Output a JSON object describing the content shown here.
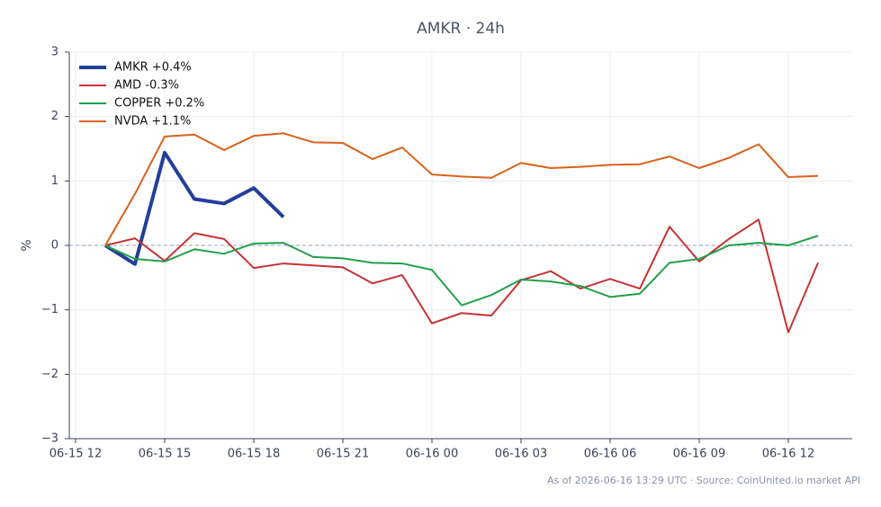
{
  "chart_data": {
    "type": "line",
    "title": "AMKR · 24h",
    "ylabel": "%",
    "footer": "As of 2026-06-16 13:29 UTC · Source: CoinUnited.io market API",
    "x": [
      "06-15 13",
      "06-15 14",
      "06-15 15",
      "06-15 16",
      "06-15 17",
      "06-15 18",
      "06-15 19",
      "06-15 20",
      "06-15 21",
      "06-15 22",
      "06-15 23",
      "06-16 00",
      "06-16 01",
      "06-16 02",
      "06-16 03",
      "06-16 04",
      "06-16 05",
      "06-16 06",
      "06-16 07",
      "06-16 08",
      "06-16 09",
      "06-16 10",
      "06-16 11",
      "06-16 12",
      "06-16 13"
    ],
    "series": [
      {
        "name": "AMKR +0.4%",
        "color": "#233f9a",
        "values": [
          0,
          -0.29,
          1.44,
          0.72,
          0.65,
          0.89,
          0.44,
          null,
          null,
          null,
          null,
          null,
          null,
          null,
          null,
          null,
          null,
          null,
          null,
          null,
          null,
          null,
          null,
          null,
          null
        ]
      },
      {
        "name": "AMD -0.3%",
        "color": "#c83232",
        "values": [
          0,
          0.11,
          -0.24,
          0.19,
          0.1,
          -0.35,
          -0.28,
          -0.31,
          -0.34,
          -0.59,
          -0.46,
          -1.21,
          -1.05,
          -1.09,
          -0.54,
          -0.4,
          -0.67,
          -0.52,
          -0.67,
          0.29,
          -0.25,
          0.1,
          0.4,
          -1.35,
          -0.27
        ]
      },
      {
        "name": "COPPER +0.2%",
        "color": "#23a04a",
        "values": [
          0,
          -0.21,
          -0.25,
          -0.06,
          -0.13,
          0.03,
          0.04,
          -0.18,
          -0.2,
          -0.27,
          -0.28,
          -0.38,
          -0.93,
          -0.77,
          -0.53,
          -0.56,
          -0.63,
          -0.8,
          -0.75,
          -0.27,
          -0.21,
          0,
          0.04,
          0,
          0.15
        ]
      },
      {
        "name": "NVDA +1.1%",
        "color": "#d9621a",
        "values": [
          0,
          0.8,
          1.69,
          1.72,
          1.48,
          1.7,
          1.74,
          1.6,
          1.59,
          1.34,
          1.52,
          1.1,
          1.07,
          1.05,
          1.28,
          1.2,
          1.22,
          1.25,
          1.26,
          1.38,
          1.2,
          1.36,
          1.57,
          1.06,
          1.08
        ]
      }
    ],
    "xticks": [
      "06-15 12",
      "06-15 15",
      "06-15 18",
      "06-15 21",
      "06-16 00",
      "06-16 03",
      "06-16 06",
      "06-16 09",
      "06-16 12"
    ],
    "ylim": [
      -3,
      3
    ],
    "yticks": [
      {
        "value": -3,
        "label": "−3"
      },
      {
        "value": -2,
        "label": "−2"
      },
      {
        "value": -1,
        "label": "−1"
      },
      0,
      1,
      2,
      3
    ],
    "reference_line": 0,
    "grid": true,
    "legend": "upper-left"
  }
}
